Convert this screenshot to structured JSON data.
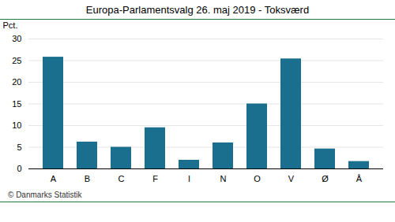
{
  "chart_data": {
    "type": "bar",
    "title": "Europa-Parlamentsvalg 26. maj 2019 - Toksværd",
    "categories": [
      "A",
      "B",
      "C",
      "F",
      "I",
      "N",
      "O",
      "V",
      "Ø",
      "Å"
    ],
    "values": [
      25.8,
      6.2,
      5.0,
      9.5,
      2.0,
      6.0,
      15.0,
      25.4,
      4.6,
      1.7
    ],
    "color": "#1a6e8e",
    "ylabel": "Pct.",
    "ylim": [
      0,
      30
    ],
    "yticks": [
      0,
      5,
      10,
      15,
      20,
      25,
      30
    ],
    "grid": true,
    "caption": "© Danmarks Statistik"
  }
}
